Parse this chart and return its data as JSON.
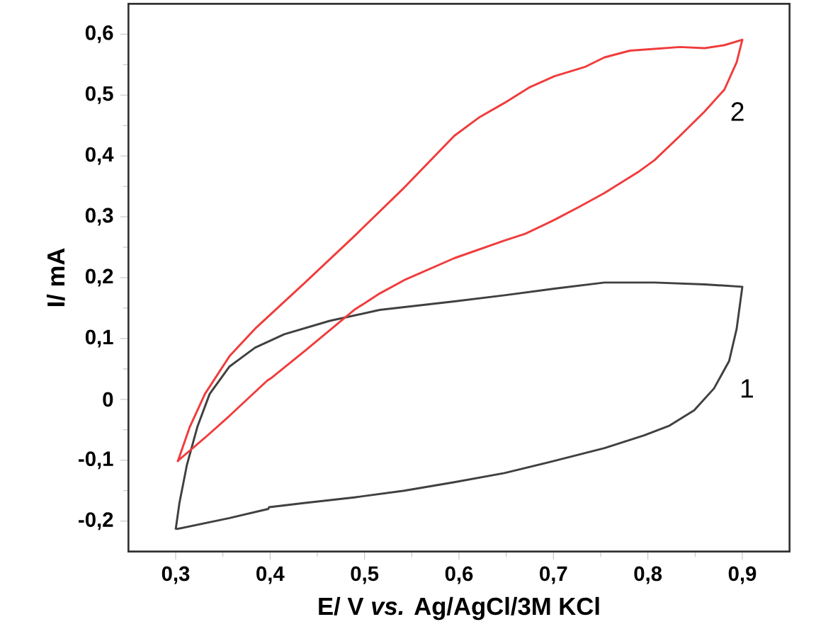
{
  "chart_data": {
    "type": "line",
    "xlabel": "E/ V *vs.* Ag/AgCl/3M KCl",
    "ylabel": "I/ mA",
    "xlim": [
      0.25,
      0.95
    ],
    "ylim": [
      -0.25,
      0.65
    ],
    "xticks": [
      {
        "value": 0.3,
        "label": "0,3"
      },
      {
        "value": 0.4,
        "label": "0,4"
      },
      {
        "value": 0.5,
        "label": "0,5"
      },
      {
        "value": 0.6,
        "label": "0,6"
      },
      {
        "value": 0.7,
        "label": "0,7"
      },
      {
        "value": 0.8,
        "label": "0,8"
      },
      {
        "value": 0.9,
        "label": "0,9"
      }
    ],
    "yticks": [
      {
        "value": -0.2,
        "label": "-0,2"
      },
      {
        "value": -0.1,
        "label": "-0,1"
      },
      0,
      {
        "value": 0.1,
        "label": "0,1"
      },
      {
        "value": 0.2,
        "label": "0,2"
      },
      {
        "value": 0.3,
        "label": "0,3"
      },
      {
        "value": 0.4,
        "label": "0,4"
      },
      {
        "value": 0.5,
        "label": "0,5"
      },
      {
        "value": 0.6,
        "label": "0,6"
      }
    ],
    "grid": false,
    "legend": false,
    "marker": "none",
    "line_style": "solid",
    "series": [
      {
        "name": "1",
        "color": "#404040",
        "x": [
          0.3,
          0.304,
          0.312,
          0.323,
          0.336,
          0.357,
          0.384,
          0.415,
          0.463,
          0.516,
          0.595,
          0.648,
          0.701,
          0.754,
          0.807,
          0.86,
          0.9,
          0.894,
          0.886,
          0.87,
          0.849,
          0.823,
          0.796,
          0.754,
          0.701,
          0.648,
          0.595,
          0.542,
          0.489,
          0.437,
          0.399,
          0.398,
          0.357,
          0.301
        ],
        "values": [
          -0.214,
          -0.17,
          -0.107,
          -0.045,
          0.009,
          0.054,
          0.085,
          0.107,
          0.129,
          0.147,
          0.161,
          0.171,
          0.182,
          0.192,
          0.192,
          0.189,
          0.185,
          0.116,
          0.063,
          0.018,
          -0.018,
          -0.043,
          -0.059,
          -0.08,
          -0.101,
          -0.121,
          -0.136,
          -0.15,
          -0.161,
          -0.17,
          -0.177,
          -0.18,
          -0.195,
          -0.213
        ]
      },
      {
        "name": "2",
        "color": "#f03c3c",
        "x": [
          0.302,
          0.315,
          0.331,
          0.357,
          0.384,
          0.437,
          0.489,
          0.542,
          0.595,
          0.622,
          0.648,
          0.675,
          0.701,
          0.733,
          0.754,
          0.781,
          0.807,
          0.834,
          0.86,
          0.881,
          0.9,
          0.894,
          0.881,
          0.86,
          0.834,
          0.807,
          0.791,
          0.754,
          0.728,
          0.701,
          0.67,
          0.648,
          0.595,
          0.542,
          0.516,
          0.489,
          0.437,
          0.402,
          0.397,
          0.357,
          0.331,
          0.303
        ],
        "values": [
          -0.103,
          -0.045,
          0.009,
          0.071,
          0.116,
          0.192,
          0.268,
          0.348,
          0.433,
          0.464,
          0.487,
          0.513,
          0.531,
          0.546,
          0.562,
          0.573,
          0.576,
          0.579,
          0.577,
          0.582,
          0.591,
          0.554,
          0.509,
          0.473,
          0.433,
          0.393,
          0.375,
          0.339,
          0.317,
          0.295,
          0.272,
          0.261,
          0.232,
          0.196,
          0.174,
          0.147,
          0.08,
          0.036,
          0.031,
          -0.027,
          -0.063,
          -0.1
        ]
      }
    ]
  }
}
